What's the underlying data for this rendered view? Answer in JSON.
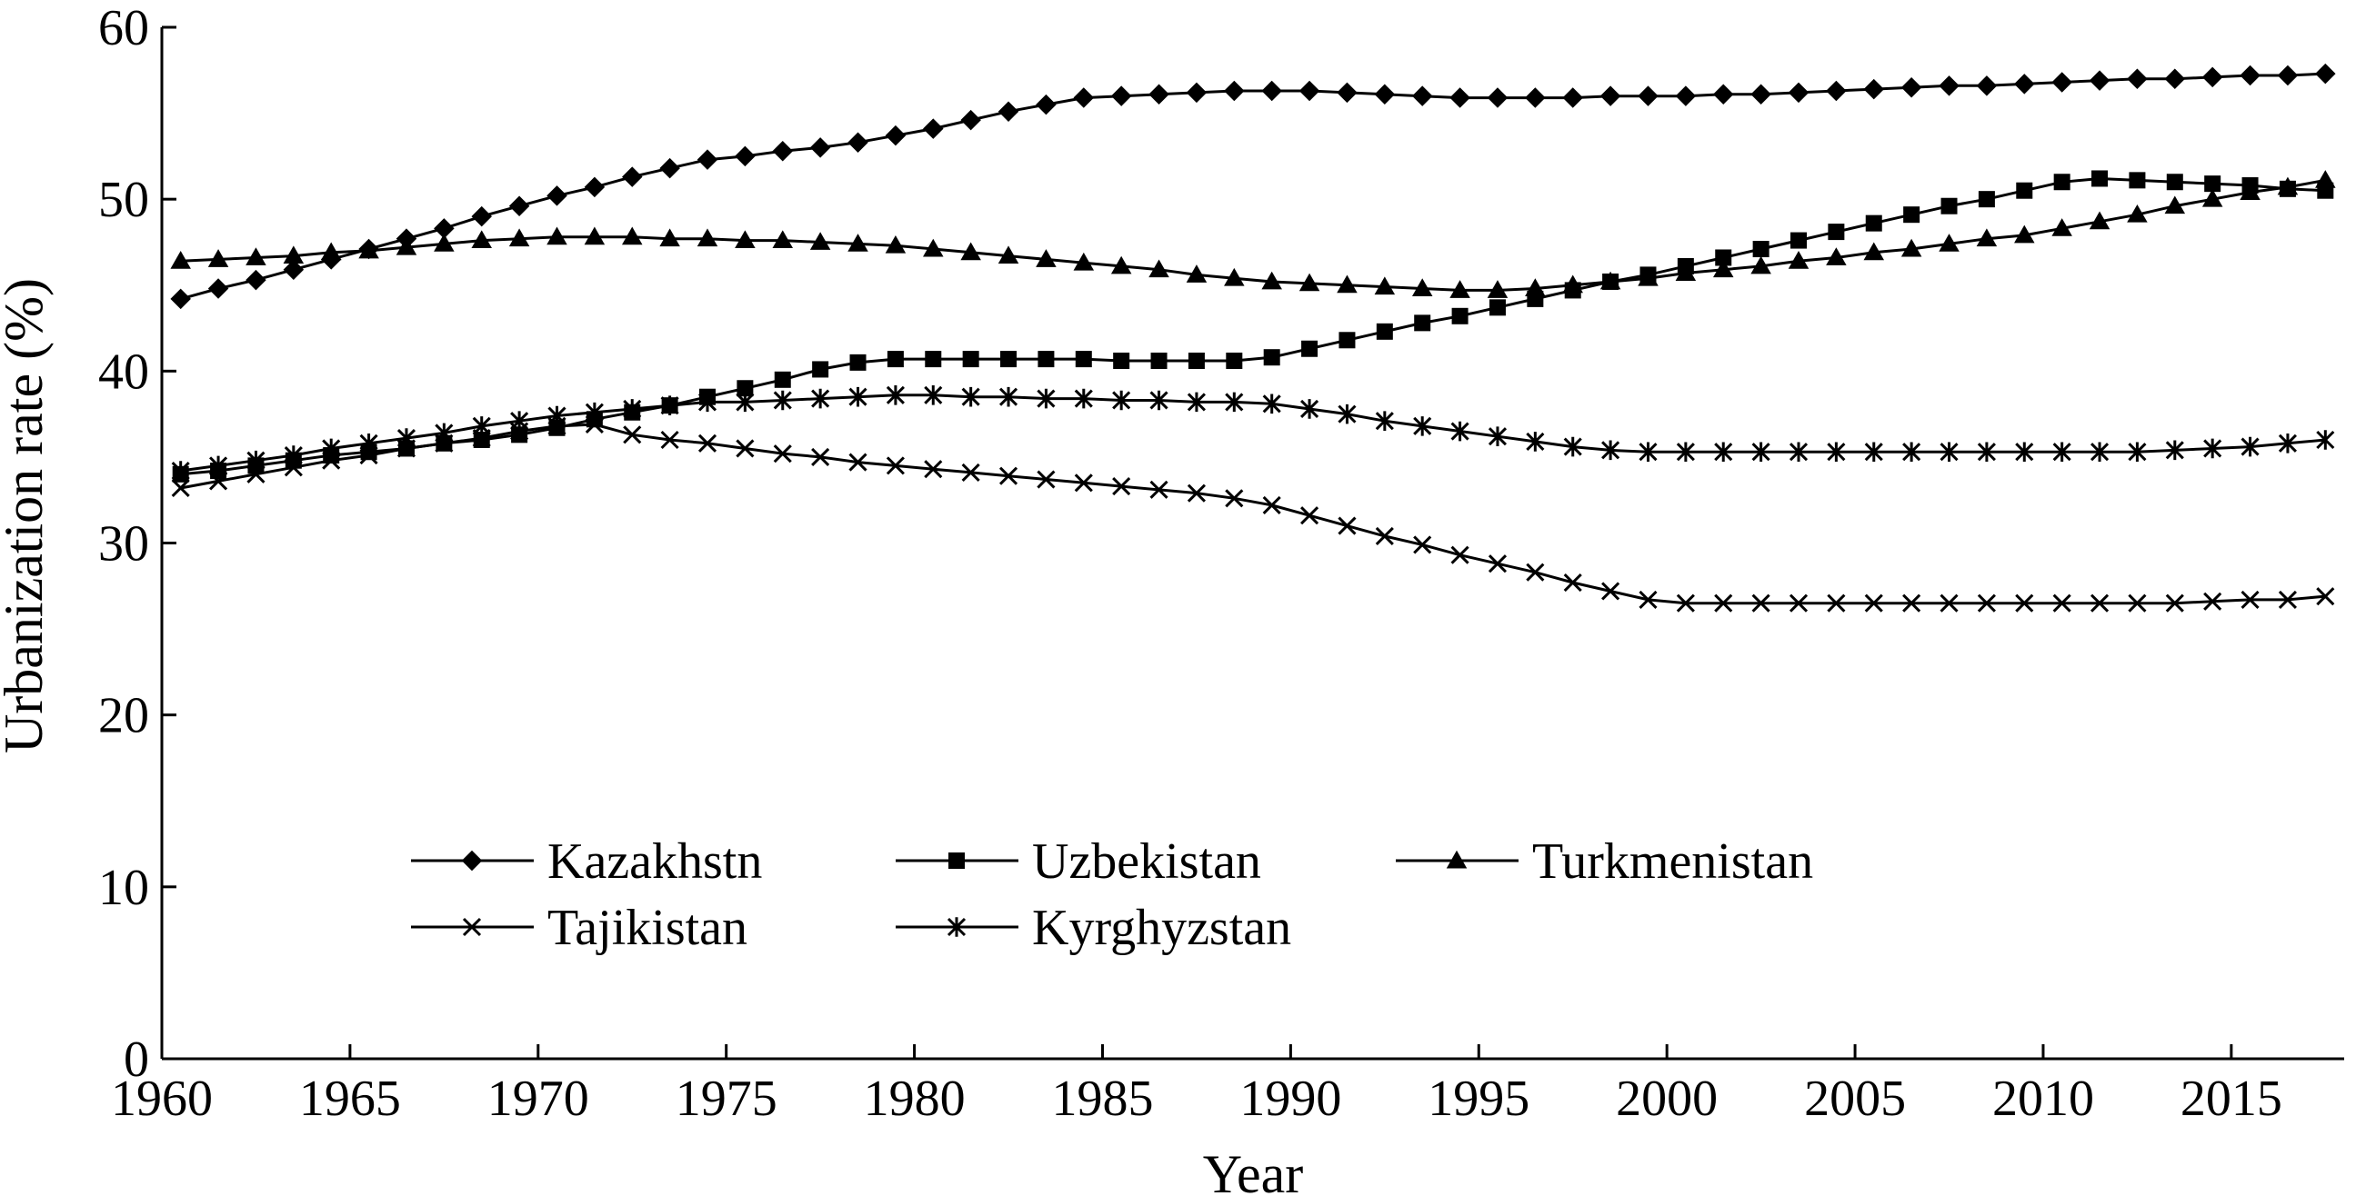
{
  "chart_data": {
    "type": "line",
    "xlabel": "Year",
    "ylabel": "Urbanization rate (%)",
    "xlim": [
      1960,
      2018
    ],
    "ylim": [
      0,
      60
    ],
    "x_ticks": [
      1960,
      1965,
      1970,
      1975,
      1980,
      1985,
      1990,
      1995,
      2000,
      2005,
      2010,
      2015
    ],
    "y_ticks": [
      0,
      10,
      20,
      30,
      40,
      50,
      60
    ],
    "grid": false,
    "legend_position": "lower-left",
    "x": [
      1960,
      1961,
      1962,
      1963,
      1964,
      1965,
      1966,
      1967,
      1968,
      1969,
      1970,
      1971,
      1972,
      1973,
      1974,
      1975,
      1976,
      1977,
      1978,
      1979,
      1980,
      1981,
      1982,
      1983,
      1984,
      1985,
      1986,
      1987,
      1988,
      1989,
      1990,
      1991,
      1992,
      1993,
      1994,
      1995,
      1996,
      1997,
      1998,
      1999,
      2000,
      2001,
      2002,
      2003,
      2004,
      2005,
      2006,
      2007,
      2008,
      2009,
      2010,
      2011,
      2012,
      2013,
      2014,
      2015,
      2016,
      2017
    ],
    "series": [
      {
        "name": "Kazakhstn",
        "marker": "diamond",
        "values": [
          44.2,
          44.8,
          45.3,
          45.9,
          46.5,
          47.1,
          47.7,
          48.3,
          49.0,
          49.6,
          50.2,
          50.7,
          51.3,
          51.8,
          52.3,
          52.5,
          52.8,
          53.0,
          53.3,
          53.7,
          54.1,
          54.6,
          55.1,
          55.5,
          55.9,
          56.0,
          56.1,
          56.2,
          56.3,
          56.3,
          56.3,
          56.2,
          56.1,
          56.0,
          55.9,
          55.9,
          55.9,
          55.9,
          56.0,
          56.0,
          56.0,
          56.1,
          56.1,
          56.2,
          56.3,
          56.4,
          56.5,
          56.6,
          56.6,
          56.7,
          56.8,
          56.9,
          57.0,
          57.0,
          57.1,
          57.2,
          57.2,
          57.3
        ]
      },
      {
        "name": "Uzbekistan",
        "marker": "square",
        "values": [
          34.0,
          34.2,
          34.5,
          34.8,
          35.1,
          35.3,
          35.5,
          35.8,
          36.0,
          36.3,
          36.7,
          37.2,
          37.6,
          38.0,
          38.5,
          39.0,
          39.5,
          40.1,
          40.5,
          40.7,
          40.7,
          40.7,
          40.7,
          40.7,
          40.7,
          40.6,
          40.6,
          40.6,
          40.6,
          40.8,
          41.3,
          41.8,
          42.3,
          42.8,
          43.2,
          43.7,
          44.2,
          44.7,
          45.2,
          45.6,
          46.1,
          46.6,
          47.1,
          47.6,
          48.1,
          48.6,
          49.1,
          49.6,
          50.0,
          50.5,
          51.0,
          51.2,
          51.1,
          51.0,
          50.9,
          50.8,
          50.6,
          50.5
        ]
      },
      {
        "name": "Turkmenistan",
        "marker": "triangle",
        "values": [
          46.4,
          46.5,
          46.6,
          46.7,
          46.9,
          47.0,
          47.2,
          47.4,
          47.6,
          47.7,
          47.8,
          47.8,
          47.8,
          47.7,
          47.7,
          47.6,
          47.6,
          47.5,
          47.4,
          47.3,
          47.1,
          46.9,
          46.7,
          46.5,
          46.3,
          46.1,
          45.9,
          45.6,
          45.4,
          45.2,
          45.1,
          45.0,
          44.9,
          44.8,
          44.7,
          44.7,
          44.8,
          45.0,
          45.2,
          45.4,
          45.7,
          45.9,
          46.1,
          46.4,
          46.6,
          46.9,
          47.1,
          47.4,
          47.7,
          47.9,
          48.3,
          48.7,
          49.1,
          49.6,
          50.0,
          50.4,
          50.7,
          51.1
        ]
      },
      {
        "name": "Tajikistan",
        "marker": "x",
        "values": [
          33.2,
          33.6,
          34.0,
          34.4,
          34.8,
          35.1,
          35.5,
          35.8,
          36.1,
          36.5,
          36.8,
          36.9,
          36.3,
          36.0,
          35.8,
          35.5,
          35.2,
          35.0,
          34.7,
          34.5,
          34.3,
          34.1,
          33.9,
          33.7,
          33.5,
          33.3,
          33.1,
          32.9,
          32.6,
          32.2,
          31.6,
          31.0,
          30.4,
          29.9,
          29.3,
          28.8,
          28.3,
          27.7,
          27.2,
          26.7,
          26.5,
          26.5,
          26.5,
          26.5,
          26.5,
          26.5,
          26.5,
          26.5,
          26.5,
          26.5,
          26.5,
          26.5,
          26.5,
          26.5,
          26.6,
          26.7,
          26.7,
          26.9
        ]
      },
      {
        "name": "Kyrghyzstan",
        "marker": "star",
        "values": [
          34.2,
          34.5,
          34.8,
          35.1,
          35.5,
          35.8,
          36.1,
          36.4,
          36.8,
          37.1,
          37.4,
          37.6,
          37.8,
          38.0,
          38.2,
          38.2,
          38.3,
          38.4,
          38.5,
          38.6,
          38.6,
          38.5,
          38.5,
          38.4,
          38.4,
          38.3,
          38.3,
          38.2,
          38.2,
          38.1,
          37.8,
          37.5,
          37.1,
          36.8,
          36.5,
          36.2,
          35.9,
          35.6,
          35.4,
          35.3,
          35.3,
          35.3,
          35.3,
          35.3,
          35.3,
          35.3,
          35.3,
          35.3,
          35.3,
          35.3,
          35.3,
          35.3,
          35.3,
          35.4,
          35.5,
          35.6,
          35.8,
          36.0
        ]
      }
    ]
  }
}
